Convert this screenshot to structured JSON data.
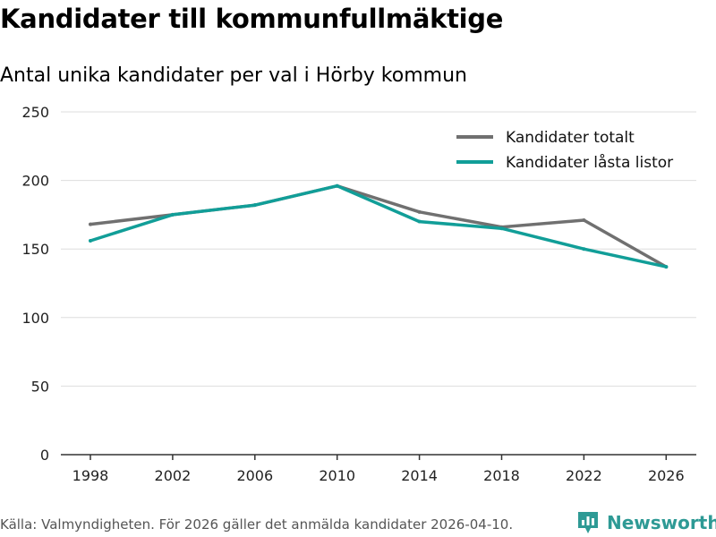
{
  "header": {
    "title": "Kandidater till kommunfullmäktige",
    "subtitle": "Antal unika kandidater per val i Hörby kommun"
  },
  "footer": {
    "source": "Källa: Valmyndigheten. För 2026 gäller det anmälda kandidater 2026-04-10.",
    "brand": "Newsworthy"
  },
  "colors": {
    "total": "#707070",
    "locked": "#119e98",
    "grid": "#dddddd",
    "brand": "#2e9a95"
  },
  "chart_data": {
    "type": "line",
    "title": "Kandidater till kommunfullmäktige",
    "subtitle": "Antal unika kandidater per val i Hörby kommun",
    "x": [
      "1998",
      "2002",
      "2006",
      "2010",
      "2014",
      "2018",
      "2022",
      "2026"
    ],
    "yticks": [
      0,
      50,
      100,
      150,
      200,
      250
    ],
    "ylim": [
      0,
      250
    ],
    "grid": true,
    "legend_position": "top-right",
    "series": [
      {
        "name": "Kandidater totalt",
        "color": "#707070",
        "values": [
          168,
          175,
          182,
          196,
          177,
          166,
          171,
          137
        ]
      },
      {
        "name": "Kandidater låsta listor",
        "color": "#119e98",
        "values": [
          156,
          175,
          182,
          196,
          170,
          165,
          150,
          137
        ]
      }
    ]
  }
}
